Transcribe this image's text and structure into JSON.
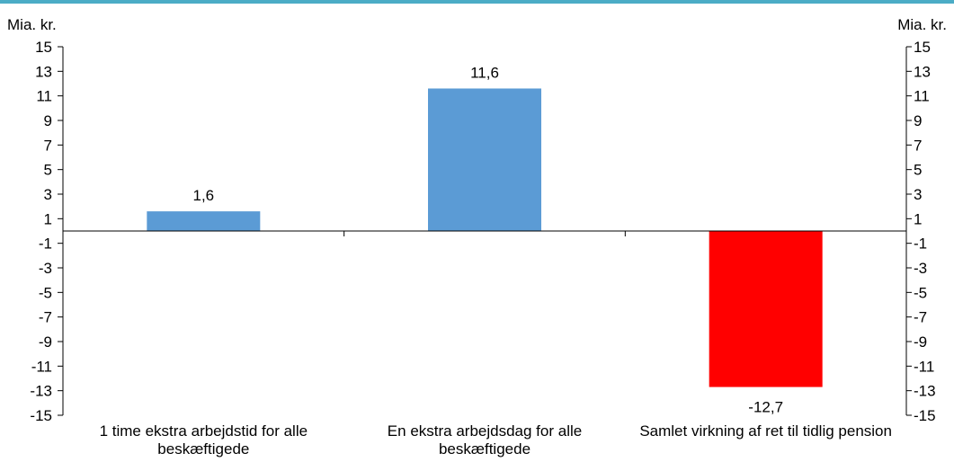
{
  "colors": {
    "top_rule": "#4bacc6",
    "bar_positive": "#5b9bd5",
    "bar_negative": "#ff0000",
    "axis": "#000000"
  },
  "unit_left": "Mia. kr.",
  "unit_right": "Mia. kr.",
  "chart_data": {
    "type": "bar",
    "categories": [
      "1 time ekstra arbejdstid for alle beskæftigede",
      "En ekstra arbejdsdag for alle beskæftigede",
      "Samlet virkning af ret til tidlig pension"
    ],
    "values": [
      1.6,
      11.6,
      -12.7
    ],
    "data_labels": [
      "1,6",
      "11,6",
      "-12,7"
    ],
    "ylabel_left": "Mia. kr.",
    "ylabel_right": "Mia. kr.",
    "ylim": [
      -15,
      15
    ],
    "yticks": [
      15,
      13,
      11,
      9,
      7,
      5,
      3,
      1,
      -1,
      -3,
      -5,
      -7,
      -9,
      -11,
      -13,
      -15
    ],
    "ytick_labels": [
      "15",
      "13",
      "11",
      "9",
      "7",
      "5",
      "3",
      "1",
      "-1",
      "-3",
      "-5",
      "-7",
      "-9",
      "-11",
      "-13",
      "-15"
    ],
    "grid": false,
    "legend": "none"
  }
}
